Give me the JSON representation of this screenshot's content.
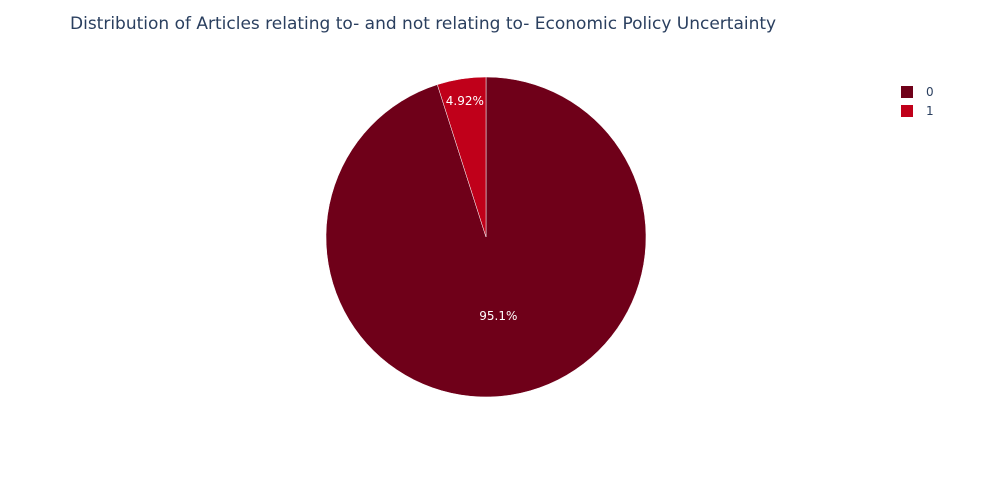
{
  "chart_data": {
    "type": "pie",
    "title": "Distribution of Articles relating to- and not relating to- Economic Policy Uncertainty",
    "categories": [
      "0",
      "1"
    ],
    "values": [
      95.08,
      4.92
    ],
    "slice_labels": [
      "95.1%",
      "4.92%"
    ],
    "colors": [
      "#6f0019",
      "#c0001a"
    ],
    "legend_position": "top-right",
    "start_angle": "12 o'clock",
    "direction": "clockwise"
  }
}
